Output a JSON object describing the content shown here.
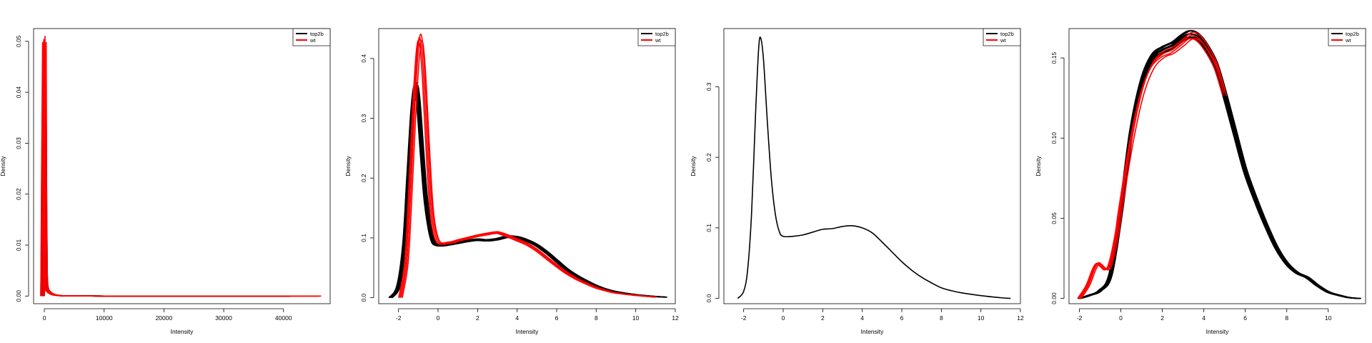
{
  "chart_data": [
    {
      "type": "line",
      "xlabel": "Intensity",
      "ylabel": "Density",
      "xlim": [
        -1800,
        47800
      ],
      "ylim": [
        -0.0015,
        0.0525
      ],
      "xticks": [
        0,
        10000,
        20000,
        30000,
        40000
      ],
      "yticks": [
        0.0,
        0.01,
        0.02,
        0.03,
        0.04,
        0.05
      ],
      "ytick_labels": [
        "0.00",
        "0.01",
        "0.02",
        "0.03",
        "0.04",
        "0.05"
      ],
      "grid": false,
      "legend_placement": "top-right",
      "series": [
        {
          "name": "top2b",
          "color": "#000000",
          "copies": 10,
          "x": [
            -300,
            0,
            100,
            200,
            400,
            700,
            1000,
            1500,
            2500,
            4000,
            10000,
            20000,
            30000,
            41000
          ],
          "y": [
            0.0,
            0.034,
            0.016,
            0.004,
            0.0015,
            0.0009,
            0.0006,
            0.0003,
            0.0001,
            3e-05,
            0.0,
            0.0,
            0.0,
            0.0
          ]
        },
        {
          "name": "wt",
          "color": "#ff0000",
          "copies": 4,
          "x": [
            -300,
            0,
            80,
            200,
            400,
            700,
            1000,
            1500,
            2500,
            4000,
            10000,
            20000,
            30000,
            40000,
            46000
          ],
          "y": [
            0.0,
            0.05,
            0.022,
            0.005,
            0.0015,
            0.0009,
            0.0006,
            0.0003,
            0.0001,
            3e-05,
            0.0,
            0.0,
            0.0,
            0.0,
            0.0
          ]
        }
      ]
    },
    {
      "type": "line",
      "xlabel": "Intensity",
      "ylabel": "Density",
      "xlim": [
        -3.0,
        12.0
      ],
      "ylim": [
        -0.01,
        0.45
      ],
      "xticks": [
        -2,
        0,
        2,
        4,
        6,
        8,
        10,
        12
      ],
      "yticks": [
        0.0,
        0.1,
        0.2,
        0.3,
        0.4
      ],
      "ytick_labels": [
        "0.0",
        "0.1",
        "0.2",
        "0.3",
        "0.4"
      ],
      "grid": false,
      "legend_placement": "top-right",
      "series": [
        {
          "name": "top2b",
          "color": "#000000",
          "copies": 8,
          "x": [
            -2.4,
            -2.0,
            -1.7,
            -1.5,
            -1.3,
            -1.15,
            -1.0,
            -0.8,
            -0.6,
            -0.3,
            0.0,
            0.5,
            1.0,
            1.5,
            2.0,
            2.5,
            3.0,
            3.5,
            4.0,
            4.5,
            5.0,
            5.5,
            6.0,
            6.5,
            7.0,
            7.5,
            8.0,
            8.5,
            9.0,
            10.0,
            11.0,
            11.5
          ],
          "y": [
            0.0,
            0.02,
            0.09,
            0.2,
            0.31,
            0.355,
            0.33,
            0.24,
            0.16,
            0.1,
            0.088,
            0.089,
            0.092,
            0.095,
            0.097,
            0.096,
            0.098,
            0.102,
            0.101,
            0.096,
            0.088,
            0.076,
            0.062,
            0.048,
            0.037,
            0.028,
            0.02,
            0.014,
            0.01,
            0.005,
            0.002,
            0.001
          ]
        },
        {
          "name": "wt",
          "color": "#ff0000",
          "copies": 4,
          "x": [
            -1.9,
            -1.6,
            -1.4,
            -1.2,
            -1.0,
            -0.85,
            -0.7,
            -0.5,
            -0.3,
            0.0,
            0.5,
            1.0,
            1.5,
            2.0,
            2.5,
            3.0,
            3.5,
            4.0,
            4.5,
            5.0,
            5.5,
            6.0,
            6.5,
            7.0,
            7.5,
            8.0,
            8.5,
            9.0,
            10.0,
            11.0
          ],
          "y": [
            0.0,
            0.06,
            0.18,
            0.32,
            0.42,
            0.43,
            0.37,
            0.24,
            0.14,
            0.095,
            0.092,
            0.096,
            0.1,
            0.104,
            0.107,
            0.109,
            0.104,
            0.097,
            0.09,
            0.08,
            0.067,
            0.054,
            0.042,
            0.032,
            0.024,
            0.017,
            0.012,
            0.008,
            0.004,
            0.001
          ]
        }
      ]
    },
    {
      "type": "line",
      "xlabel": "Intensity",
      "ylabel": "Density",
      "xlim": [
        -3.0,
        12.0
      ],
      "ylim": [
        -0.0075,
        0.3825
      ],
      "xticks": [
        -2,
        0,
        2,
        4,
        6,
        8,
        10,
        12
      ],
      "yticks": [
        0.0,
        0.1,
        0.2,
        0.3
      ],
      "ytick_labels": [
        "0.0",
        "0.1",
        "0.2",
        "0.3"
      ],
      "grid": false,
      "legend_placement": "top-right",
      "series": [
        {
          "name": "top2b",
          "color": "#000000",
          "copies": 1,
          "x": [
            -2.3,
            -2.0,
            -1.8,
            -1.6,
            -1.4,
            -1.25,
            -1.15,
            -1.0,
            -0.8,
            -0.6,
            -0.4,
            -0.2,
            0.0,
            0.5,
            1.0,
            1.5,
            2.0,
            2.5,
            3.0,
            3.5,
            4.0,
            4.5,
            5.0,
            5.5,
            6.0,
            6.5,
            7.0,
            7.5,
            8.0,
            8.5,
            9.0,
            10.0,
            11.0,
            11.5
          ],
          "y": [
            0.0,
            0.01,
            0.04,
            0.12,
            0.26,
            0.35,
            0.37,
            0.34,
            0.25,
            0.17,
            0.12,
            0.095,
            0.088,
            0.088,
            0.09,
            0.094,
            0.098,
            0.099,
            0.102,
            0.103,
            0.1,
            0.093,
            0.08,
            0.066,
            0.052,
            0.04,
            0.03,
            0.022,
            0.015,
            0.011,
            0.008,
            0.004,
            0.001,
            0.0
          ]
        },
        {
          "name": "wt",
          "color": "#ff0000",
          "copies": 0,
          "x": [],
          "y": []
        }
      ]
    },
    {
      "type": "line",
      "xlabel": "Intensity",
      "ylabel": "Density",
      "xlim": [
        -2.5,
        11.8
      ],
      "ylim": [
        -0.0033,
        0.1683
      ],
      "xticks": [
        -2,
        0,
        2,
        4,
        6,
        8,
        10
      ],
      "yticks": [
        0.0,
        0.05,
        0.1,
        0.15
      ],
      "ytick_labels": [
        "0.00",
        "0.05",
        "0.10",
        "0.15"
      ],
      "grid": false,
      "legend_placement": "top-right",
      "series": [
        {
          "name": "top2b",
          "color": "#000000",
          "copies": 10,
          "x": [
            -2.0,
            -1.5,
            -1.0,
            -0.5,
            0.0,
            0.5,
            1.0,
            1.5,
            2.0,
            2.5,
            3.0,
            3.4,
            3.8,
            4.2,
            4.6,
            5.0,
            5.5,
            6.0,
            6.5,
            7.0,
            7.5,
            8.0,
            8.5,
            9.0,
            9.5,
            10.0,
            10.5,
            11.0,
            11.5
          ],
          "y": [
            0.0,
            0.002,
            0.005,
            0.015,
            0.055,
            0.105,
            0.135,
            0.15,
            0.155,
            0.158,
            0.163,
            0.165,
            0.162,
            0.155,
            0.145,
            0.128,
            0.104,
            0.08,
            0.062,
            0.046,
            0.032,
            0.022,
            0.016,
            0.013,
            0.008,
            0.004,
            0.002,
            0.0005,
            0.0
          ]
        },
        {
          "name": "wt",
          "color": "#ff0000",
          "copies": 4,
          "x": [
            -2.0,
            -1.6,
            -1.3,
            -1.1,
            -0.9,
            -0.7,
            -0.5,
            -0.2,
            0.0,
            0.5,
            1.0,
            1.5,
            2.0,
            2.5,
            3.0,
            3.4,
            3.8,
            4.2,
            4.6,
            5.0
          ],
          "y": [
            0.0,
            0.008,
            0.018,
            0.022,
            0.02,
            0.018,
            0.022,
            0.04,
            0.058,
            0.098,
            0.128,
            0.145,
            0.152,
            0.155,
            0.16,
            0.164,
            0.162,
            0.155,
            0.145,
            0.128
          ]
        }
      ]
    }
  ]
}
